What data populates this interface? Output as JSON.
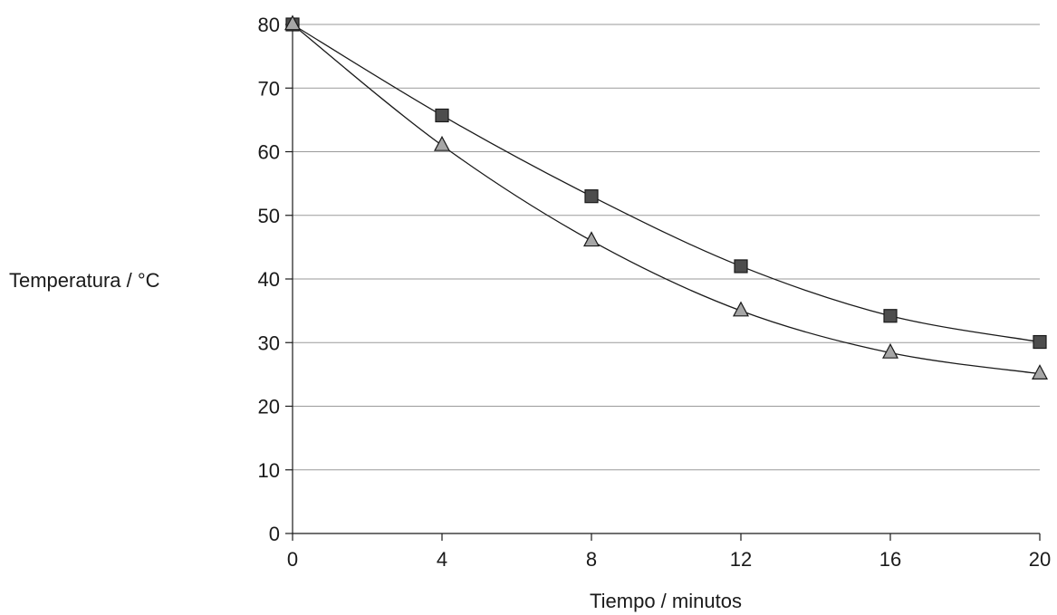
{
  "chart_data": {
    "type": "scatter",
    "xlabel": "Tiempo / minutos",
    "ylabel": "Temperatura / °C",
    "xlim": [
      0,
      20
    ],
    "ylim": [
      0,
      80
    ],
    "xticks": [
      "0",
      "4",
      "8",
      "12",
      "16",
      "20"
    ],
    "yticks": [
      "0",
      "10",
      "20",
      "30",
      "40",
      "50",
      "60",
      "70",
      "80"
    ],
    "grid": "horizontal",
    "legend": "none",
    "series": [
      {
        "marker": "square",
        "color": "#4d4d4d",
        "x": [
          0,
          4,
          8,
          12,
          16,
          20
        ],
        "y": [
          80,
          65.7,
          53,
          42,
          34.2,
          30.1
        ]
      },
      {
        "marker": "triangle",
        "color": "#a6a6a6",
        "x": [
          0,
          4,
          8,
          12,
          16,
          20
        ],
        "y": [
          80,
          61,
          46,
          35,
          28.4,
          25.1
        ]
      }
    ]
  }
}
